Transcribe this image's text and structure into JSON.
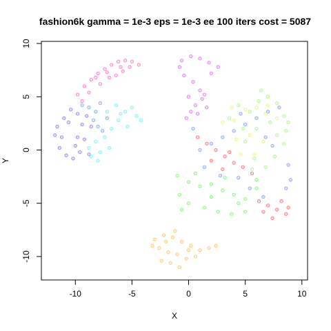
{
  "chart_data": {
    "type": "scatter",
    "title": "fashion6k gamma = 1e-3 eps = 1e-3 ee 100 iters cost = 5087",
    "xlabel": "X",
    "ylabel": "Y",
    "xlim": [
      -13,
      10.5
    ],
    "ylim": [
      -12.2,
      10.2
    ],
    "xticks": [
      -10,
      -5,
      0,
      5,
      10
    ],
    "yticks": [
      -10,
      -5,
      0,
      5,
      10
    ],
    "grid": false,
    "legend": "none",
    "marker": "open circle",
    "clusters": [
      {
        "color": "#ff2aa6",
        "points": [
          [
            -9.8,
            5.2
          ],
          [
            -9.2,
            6.0
          ],
          [
            -8.6,
            6.6
          ],
          [
            -8.0,
            7.2
          ],
          [
            -7.4,
            7.6
          ],
          [
            -6.8,
            8.0
          ],
          [
            -6.2,
            8.3
          ],
          [
            -5.6,
            8.4
          ],
          [
            -5.0,
            8.3
          ],
          [
            -4.4,
            8.0
          ],
          [
            -7.8,
            6.2
          ],
          [
            -7.0,
            6.8
          ],
          [
            -6.4,
            7.0
          ],
          [
            -5.8,
            7.4
          ],
          [
            -8.8,
            5.4
          ],
          [
            -9.4,
            4.6
          ],
          [
            -6.0,
            7.8
          ],
          [
            -7.2,
            7.3
          ],
          [
            -8.2,
            6.8
          ],
          [
            -5.2,
            7.8
          ]
        ]
      },
      {
        "color": "#4b3cf0",
        "points": [
          [
            -11.6,
            2.2
          ],
          [
            -11.2,
            1.2
          ],
          [
            -11.4,
            0.2
          ],
          [
            -10.8,
            -0.5
          ],
          [
            -10.2,
            -0.8
          ],
          [
            -10.6,
            2.6
          ],
          [
            -9.8,
            3.4
          ],
          [
            -9.4,
            2.4
          ],
          [
            -9.8,
            1.2
          ],
          [
            -10.0,
            0.4
          ],
          [
            -9.0,
            3.2
          ],
          [
            -8.6,
            2.2
          ],
          [
            -9.2,
            1.0
          ],
          [
            -11.0,
            3.0
          ],
          [
            -8.8,
            -0.4
          ],
          [
            -10.4,
            3.8
          ],
          [
            -11.8,
            1.4
          ],
          [
            -9.6,
            -0.2
          ]
        ]
      },
      {
        "color": "#2a7fe6",
        "points": [
          [
            -8.8,
            4.0
          ],
          [
            -8.2,
            3.6
          ],
          [
            -7.8,
            4.4
          ],
          [
            -7.2,
            3.0
          ],
          [
            -8.4,
            2.8
          ],
          [
            -7.6,
            1.8
          ],
          [
            -9.4,
            4.2
          ],
          [
            -8.0,
            2.2
          ]
        ]
      },
      {
        "color": "#2ee8f2",
        "points": [
          [
            -8.2,
            0.8
          ],
          [
            -7.8,
            -0.2
          ],
          [
            -8.6,
            -0.6
          ],
          [
            -7.4,
            1.2
          ],
          [
            -6.8,
            2.0
          ],
          [
            -6.2,
            2.8
          ],
          [
            -5.6,
            3.6
          ],
          [
            -5.0,
            4.0
          ],
          [
            -4.6,
            3.2
          ],
          [
            -6.4,
            4.2
          ],
          [
            -7.2,
            3.6
          ],
          [
            -5.4,
            2.2
          ],
          [
            -7.0,
            0.2
          ],
          [
            -8.0,
            -1.0
          ],
          [
            -6.0,
            3.4
          ],
          [
            -4.2,
            2.8
          ],
          [
            -8.8,
            0.2
          ]
        ]
      },
      {
        "color": "#cc2cf0",
        "points": [
          [
            -0.6,
            8.4
          ],
          [
            0.2,
            8.8
          ],
          [
            1.0,
            8.6
          ],
          [
            1.8,
            8.2
          ],
          [
            2.6,
            7.8
          ],
          [
            -0.4,
            7.0
          ],
          [
            0.4,
            6.4
          ],
          [
            1.0,
            5.6
          ],
          [
            1.2,
            4.8
          ],
          [
            0.6,
            4.2
          ],
          [
            0.2,
            3.6
          ],
          [
            -0.2,
            3.0
          ],
          [
            0.8,
            3.4
          ],
          [
            1.4,
            5.2
          ],
          [
            2.0,
            7.2
          ],
          [
            0.0,
            5.0
          ],
          [
            -0.8,
            7.8
          ],
          [
            1.6,
            4.0
          ]
        ]
      },
      {
        "color": "#ff1a2a",
        "points": [
          [
            0.8,
            1.2
          ],
          [
            1.6,
            0.6
          ],
          [
            2.4,
            0.0
          ],
          [
            3.2,
            -0.6
          ],
          [
            4.0,
            -1.2
          ],
          [
            4.8,
            -1.6
          ],
          [
            2.0,
            -1.0
          ],
          [
            3.0,
            -1.8
          ],
          [
            6.2,
            -4.8
          ],
          [
            7.0,
            -5.2
          ],
          [
            7.8,
            -5.6
          ],
          [
            8.6,
            -6.0
          ],
          [
            7.4,
            -6.4
          ],
          [
            6.6,
            -5.8
          ],
          [
            8.2,
            -4.8
          ],
          [
            5.6,
            -2.2
          ],
          [
            3.6,
            -0.2
          ],
          [
            8.8,
            -5.4
          ]
        ]
      },
      {
        "color": "#3a6ff0",
        "points": [
          [
            1.0,
            0.0
          ],
          [
            2.0,
            0.6
          ],
          [
            3.0,
            1.2
          ],
          [
            4.0,
            1.8
          ],
          [
            5.0,
            2.4
          ],
          [
            6.0,
            3.0
          ],
          [
            7.0,
            3.6
          ],
          [
            8.0,
            4.0
          ],
          [
            1.4,
            -1.6
          ],
          [
            2.8,
            -2.4
          ],
          [
            4.4,
            -2.6
          ],
          [
            5.4,
            -3.6
          ],
          [
            6.6,
            -4.4
          ],
          [
            8.6,
            -3.6
          ],
          [
            9.0,
            -2.8
          ],
          [
            6.8,
            1.2
          ],
          [
            4.6,
            3.4
          ],
          [
            7.4,
            0.4
          ],
          [
            0.4,
            2.0
          ],
          [
            8.8,
            -1.4
          ]
        ]
      },
      {
        "color": "#7cf24a",
        "points": [
          [
            4.4,
            4.2
          ],
          [
            5.4,
            3.6
          ],
          [
            6.2,
            4.6
          ],
          [
            7.0,
            5.0
          ],
          [
            7.8,
            4.4
          ],
          [
            8.4,
            3.2
          ],
          [
            8.6,
            1.8
          ],
          [
            8.4,
            0.6
          ],
          [
            7.6,
            -0.6
          ],
          [
            6.8,
            -1.6
          ],
          [
            5.8,
            -0.8
          ],
          [
            5.0,
            0.8
          ],
          [
            6.0,
            2.0
          ],
          [
            7.2,
            2.6
          ],
          [
            3.6,
            3.0
          ],
          [
            6.4,
            5.6
          ],
          [
            8.8,
            2.6
          ],
          [
            5.6,
            -1.8
          ],
          [
            4.8,
            2.0
          ],
          [
            7.8,
            1.4
          ]
        ]
      },
      {
        "color": "#e8f222",
        "points": [
          [
            3.0,
            2.6
          ],
          [
            4.0,
            2.8
          ],
          [
            5.0,
            3.8
          ],
          [
            6.0,
            4.0
          ],
          [
            7.0,
            4.2
          ],
          [
            6.6,
            0.8
          ],
          [
            5.4,
            1.4
          ],
          [
            4.6,
            -0.4
          ],
          [
            3.8,
            4.0
          ],
          [
            7.8,
            3.0
          ],
          [
            5.8,
            -0.4
          ],
          [
            6.8,
            3.4
          ],
          [
            4.2,
            1.0
          ]
        ]
      },
      {
        "color": "#3cf030",
        "points": [
          [
            -1.0,
            -2.4
          ],
          [
            0.0,
            -3.0
          ],
          [
            1.0,
            -3.4
          ],
          [
            2.0,
            -3.2
          ],
          [
            3.0,
            -3.8
          ],
          [
            4.0,
            -4.2
          ],
          [
            5.0,
            -4.6
          ],
          [
            6.0,
            -3.6
          ],
          [
            0.0,
            -5.0
          ],
          [
            1.4,
            -5.4
          ],
          [
            2.6,
            -5.8
          ],
          [
            3.8,
            -6.0
          ],
          [
            5.0,
            -5.8
          ],
          [
            -0.6,
            -5.6
          ],
          [
            2.0,
            -4.4
          ],
          [
            4.4,
            -5.0
          ],
          [
            6.0,
            -2.8
          ],
          [
            0.6,
            -2.2
          ],
          [
            -0.8,
            -4.2
          ],
          [
            3.2,
            -2.6
          ]
        ]
      },
      {
        "color": "#ffa41a",
        "points": [
          [
            -3.0,
            -8.4
          ],
          [
            -2.2,
            -8.0
          ],
          [
            -1.4,
            -8.2
          ],
          [
            -0.6,
            -8.6
          ],
          [
            0.2,
            -9.0
          ],
          [
            1.0,
            -9.4
          ],
          [
            1.8,
            -9.2
          ],
          [
            -2.6,
            -9.2
          ],
          [
            -1.8,
            -9.6
          ],
          [
            -1.0,
            -9.8
          ],
          [
            -0.2,
            -10.2
          ],
          [
            0.6,
            -10.0
          ],
          [
            -1.6,
            -10.6
          ],
          [
            -0.8,
            -11.0
          ],
          [
            -2.0,
            -8.6
          ],
          [
            -3.2,
            -9.0
          ],
          [
            2.4,
            -9.0
          ],
          [
            -1.2,
            -7.6
          ],
          [
            0.0,
            -9.4
          ],
          [
            -2.4,
            -10.4
          ]
        ]
      }
    ]
  }
}
